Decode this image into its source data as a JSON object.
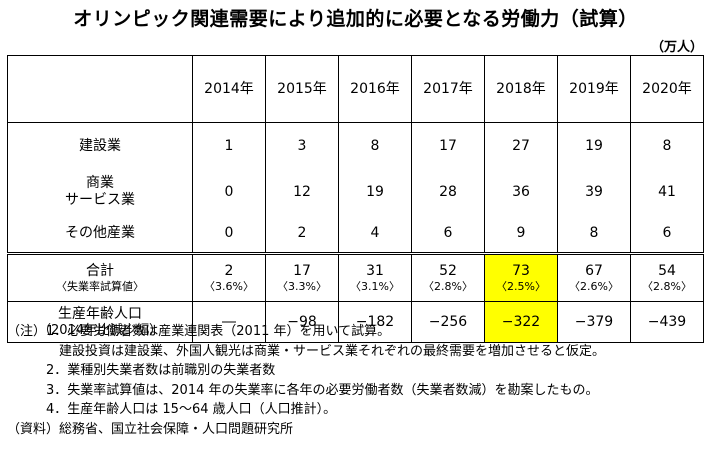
{
  "title": "オリンピック関連需要により追加的に必要となる労働力（試算）",
  "unit": "（万人）",
  "columns": [
    "2014年",
    "2015年",
    "2016年",
    "2017年",
    "2018年",
    "2019年",
    "2020年"
  ],
  "rows": {
    "construction": {
      "label": "建設業",
      "values": [
        "1",
        "3",
        "8",
        "17",
        "27",
        "19",
        "8"
      ]
    },
    "commerce": {
      "label_line1": "商業",
      "label_line2": "サービス業",
      "values": [
        "0",
        "12",
        "19",
        "28",
        "36",
        "39",
        "41"
      ]
    },
    "other": {
      "label": "その他産業",
      "values": [
        "0",
        "2",
        "4",
        "6",
        "9",
        "8",
        "6"
      ]
    },
    "total": {
      "label": "合計",
      "sublabel": "〈失業率試算値〉",
      "values": [
        "2",
        "17",
        "31",
        "52",
        "73",
        "67",
        "54"
      ],
      "rates": [
        "〈3.6%〉",
        "〈3.3%〉",
        "〈3.1%〉",
        "〈2.8%〉",
        "〈2.5%〉",
        "〈2.6%〉",
        "〈2.8%〉"
      ]
    },
    "population": {
      "label": "生産年齢人口",
      "sublabel": "（2014年比減少幅）",
      "values": [
        "―",
        "−98",
        "−182",
        "−256",
        "−322",
        "−379",
        "−439"
      ]
    }
  },
  "highlight_color": "#ffff00",
  "highlight_column": "2018年",
  "notes": [
    "（注）1．必要労働者数は産業連関表（2011 年）を用いて試算。",
    "　　　　建設投資は建設業、外国人観光は商業・サービス業それぞれの最終需要を増加させると仮定。",
    "　　　2．業種別失業者数は前職別の失業者数",
    "　　　3．失業率試算値は、2014 年の失業率に各年の必要労働者数（失業者数減）を勘案したもの。",
    "　　　4．生産年齢人口は 15～64 歳人口（人口推計）。",
    "（資料）総務省、国立社会保障・人口問題研究所"
  ]
}
